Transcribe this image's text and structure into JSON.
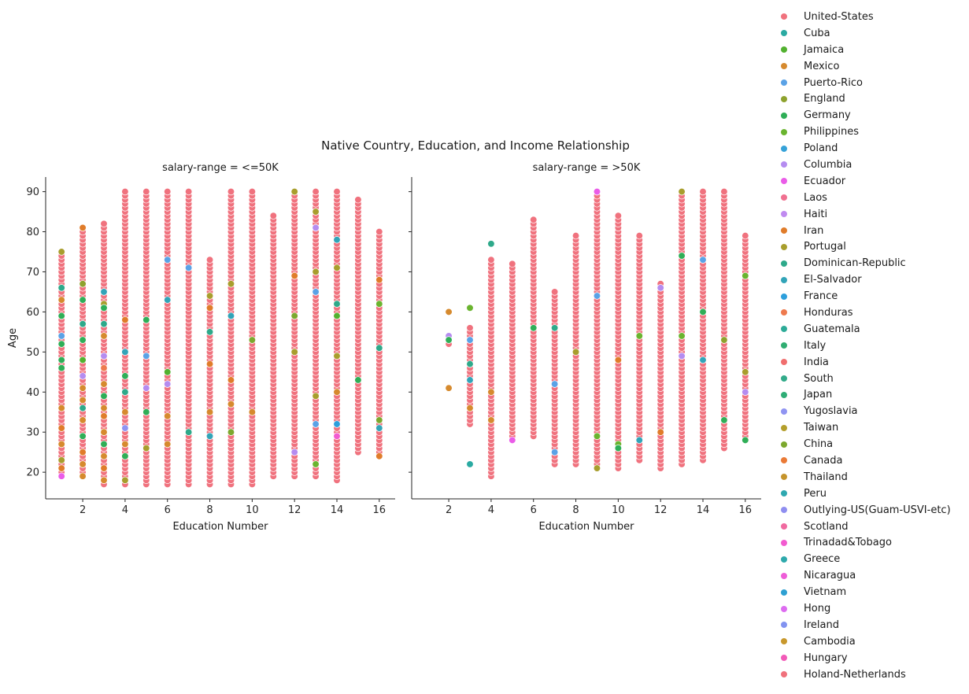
{
  "chart_data": {
    "type": "scatter",
    "title": "Native Country, Education, and Income Relationship",
    "xlabel": "Education Number",
    "ylabel": "Age",
    "xlim": [
      0.25,
      16.75
    ],
    "ylim": [
      13.35,
      93.65
    ],
    "xticks": [
      2,
      4,
      6,
      8,
      10,
      12,
      14,
      16
    ],
    "yticks": [
      20,
      30,
      40,
      50,
      60,
      70,
      80,
      90
    ],
    "grid": false,
    "legend_position": "right",
    "panels": [
      {
        "title": "salary-range = <=50K",
        "columns": [
          {
            "x": 1,
            "ymin": 19,
            "ymax": 75
          },
          {
            "x": 2,
            "ymin": 19,
            "ymax": 81
          },
          {
            "x": 3,
            "ymin": 17,
            "ymax": 82
          },
          {
            "x": 4,
            "ymin": 17,
            "ymax": 90
          },
          {
            "x": 5,
            "ymin": 17,
            "ymax": 90
          },
          {
            "x": 6,
            "ymin": 17,
            "ymax": 90
          },
          {
            "x": 7,
            "ymin": 17,
            "ymax": 90
          },
          {
            "x": 8,
            "ymin": 17,
            "ymax": 73
          },
          {
            "x": 9,
            "ymin": 17,
            "ymax": 90
          },
          {
            "x": 10,
            "ymin": 17,
            "ymax": 90
          },
          {
            "x": 11,
            "ymin": 19,
            "ymax": 84
          },
          {
            "x": 12,
            "ymin": 19,
            "ymax": 90
          },
          {
            "x": 13,
            "ymin": 19,
            "ymax": 90
          },
          {
            "x": 14,
            "ymin": 18,
            "ymax": 90
          },
          {
            "x": 15,
            "ymin": 25,
            "ymax": 88
          },
          {
            "x": 16,
            "ymin": 24,
            "ymax": 80
          }
        ],
        "highlights": [
          {
            "x": 1,
            "y": 66,
            "c": 15
          },
          {
            "x": 1,
            "y": 63,
            "c": 3
          },
          {
            "x": 1,
            "y": 59,
            "c": 6
          },
          {
            "x": 1,
            "y": 54,
            "c": 4
          },
          {
            "x": 1,
            "y": 48,
            "c": 6
          },
          {
            "x": 1,
            "y": 46,
            "c": 6
          },
          {
            "x": 1,
            "y": 36,
            "c": 3
          },
          {
            "x": 1,
            "y": 31,
            "c": 13
          },
          {
            "x": 1,
            "y": 27,
            "c": 3
          },
          {
            "x": 1,
            "y": 23,
            "c": 14
          },
          {
            "x": 1,
            "y": 21,
            "c": 13
          },
          {
            "x": 1,
            "y": 19,
            "c": 10
          },
          {
            "x": 1,
            "y": 75,
            "c": 14
          },
          {
            "x": 1,
            "y": 52,
            "c": 6
          },
          {
            "x": 2,
            "y": 81,
            "c": 13
          },
          {
            "x": 2,
            "y": 67,
            "c": 5
          },
          {
            "x": 2,
            "y": 63,
            "c": 6
          },
          {
            "x": 2,
            "y": 57,
            "c": 15
          },
          {
            "x": 2,
            "y": 53,
            "c": 6
          },
          {
            "x": 2,
            "y": 48,
            "c": 2
          },
          {
            "x": 2,
            "y": 44,
            "c": 9
          },
          {
            "x": 2,
            "y": 41,
            "c": 3
          },
          {
            "x": 2,
            "y": 38,
            "c": 3
          },
          {
            "x": 2,
            "y": 36,
            "c": 15
          },
          {
            "x": 2,
            "y": 33,
            "c": 3
          },
          {
            "x": 2,
            "y": 29,
            "c": 6
          },
          {
            "x": 2,
            "y": 25,
            "c": 13
          },
          {
            "x": 2,
            "y": 22,
            "c": 3
          },
          {
            "x": 2,
            "y": 19,
            "c": 3
          },
          {
            "x": 3,
            "y": 65,
            "c": 16
          },
          {
            "x": 3,
            "y": 62,
            "c": 14
          },
          {
            "x": 3,
            "y": 57,
            "c": 15
          },
          {
            "x": 3,
            "y": 54,
            "c": 3
          },
          {
            "x": 3,
            "y": 49,
            "c": 9
          },
          {
            "x": 3,
            "y": 46,
            "c": 18
          },
          {
            "x": 3,
            "y": 42,
            "c": 3
          },
          {
            "x": 3,
            "y": 39,
            "c": 6
          },
          {
            "x": 3,
            "y": 36,
            "c": 3
          },
          {
            "x": 3,
            "y": 34,
            "c": 13
          },
          {
            "x": 3,
            "y": 30,
            "c": 3
          },
          {
            "x": 3,
            "y": 27,
            "c": 6
          },
          {
            "x": 3,
            "y": 24,
            "c": 3
          },
          {
            "x": 3,
            "y": 21,
            "c": 13
          },
          {
            "x": 3,
            "y": 18,
            "c": 3
          },
          {
            "x": 3,
            "y": 61,
            "c": 6
          },
          {
            "x": 4,
            "y": 58,
            "c": 13
          },
          {
            "x": 4,
            "y": 50,
            "c": 16
          },
          {
            "x": 4,
            "y": 44,
            "c": 6
          },
          {
            "x": 4,
            "y": 40,
            "c": 15
          },
          {
            "x": 4,
            "y": 35,
            "c": 3
          },
          {
            "x": 4,
            "y": 31,
            "c": 24
          },
          {
            "x": 4,
            "y": 27,
            "c": 3
          },
          {
            "x": 4,
            "y": 24,
            "c": 6
          },
          {
            "x": 4,
            "y": 18,
            "c": 14
          },
          {
            "x": 5,
            "y": 58,
            "c": 6
          },
          {
            "x": 5,
            "y": 49,
            "c": 4
          },
          {
            "x": 5,
            "y": 41,
            "c": 9
          },
          {
            "x": 5,
            "y": 35,
            "c": 6
          },
          {
            "x": 5,
            "y": 26,
            "c": 14
          },
          {
            "x": 6,
            "y": 73,
            "c": 4
          },
          {
            "x": 6,
            "y": 63,
            "c": 16
          },
          {
            "x": 6,
            "y": 45,
            "c": 2
          },
          {
            "x": 6,
            "y": 42,
            "c": 9
          },
          {
            "x": 6,
            "y": 34,
            "c": 3
          },
          {
            "x": 6,
            "y": 27,
            "c": 3
          },
          {
            "x": 7,
            "y": 71,
            "c": 4
          },
          {
            "x": 7,
            "y": 30,
            "c": 15
          },
          {
            "x": 8,
            "y": 64,
            "c": 14
          },
          {
            "x": 8,
            "y": 61,
            "c": 13
          },
          {
            "x": 8,
            "y": 55,
            "c": 15
          },
          {
            "x": 8,
            "y": 47,
            "c": 13
          },
          {
            "x": 8,
            "y": 35,
            "c": 3
          },
          {
            "x": 8,
            "y": 29,
            "c": 16
          },
          {
            "x": 9,
            "y": 67,
            "c": 14
          },
          {
            "x": 9,
            "y": 59,
            "c": 16
          },
          {
            "x": 9,
            "y": 43,
            "c": 13
          },
          {
            "x": 9,
            "y": 37,
            "c": 3
          },
          {
            "x": 9,
            "y": 30,
            "c": 26
          },
          {
            "x": 10,
            "y": 35,
            "c": 3
          },
          {
            "x": 10,
            "y": 53,
            "c": 26
          },
          {
            "x": 12,
            "y": 90,
            "c": 14
          },
          {
            "x": 12,
            "y": 69,
            "c": 13
          },
          {
            "x": 12,
            "y": 59,
            "c": 26
          },
          {
            "x": 12,
            "y": 50,
            "c": 14
          },
          {
            "x": 12,
            "y": 25,
            "c": 9
          },
          {
            "x": 13,
            "y": 85,
            "c": 14
          },
          {
            "x": 13,
            "y": 81,
            "c": 9
          },
          {
            "x": 13,
            "y": 70,
            "c": 14
          },
          {
            "x": 13,
            "y": 65,
            "c": 4
          },
          {
            "x": 13,
            "y": 39,
            "c": 14
          },
          {
            "x": 13,
            "y": 32,
            "c": 4
          },
          {
            "x": 13,
            "y": 22,
            "c": 7
          },
          {
            "x": 14,
            "y": 78,
            "c": 16
          },
          {
            "x": 14,
            "y": 71,
            "c": 14
          },
          {
            "x": 14,
            "y": 62,
            "c": 15
          },
          {
            "x": 14,
            "y": 59,
            "c": 2
          },
          {
            "x": 14,
            "y": 49,
            "c": 14
          },
          {
            "x": 14,
            "y": 40,
            "c": 3
          },
          {
            "x": 14,
            "y": 32,
            "c": 17
          },
          {
            "x": 14,
            "y": 29,
            "c": 32
          },
          {
            "x": 15,
            "y": 43,
            "c": 6
          },
          {
            "x": 16,
            "y": 68,
            "c": 13
          },
          {
            "x": 16,
            "y": 62,
            "c": 7
          },
          {
            "x": 16,
            "y": 51,
            "c": 15
          },
          {
            "x": 16,
            "y": 33,
            "c": 26
          },
          {
            "x": 16,
            "y": 31,
            "c": 16
          },
          {
            "x": 16,
            "y": 24,
            "c": 13
          }
        ]
      },
      {
        "title": "salary-range = >50K",
        "columns": [
          {
            "x": 2,
            "ymin": 52,
            "ymax": 53
          },
          {
            "x": 3,
            "ymin": 32,
            "ymax": 56
          },
          {
            "x": 4,
            "ymin": 19,
            "ymax": 73
          },
          {
            "x": 5,
            "ymin": 28,
            "ymax": 72
          },
          {
            "x": 6,
            "ymin": 29,
            "ymax": 83
          },
          {
            "x": 7,
            "ymin": 22,
            "ymax": 65
          },
          {
            "x": 8,
            "ymin": 22,
            "ymax": 79
          },
          {
            "x": 9,
            "ymin": 21,
            "ymax": 90
          },
          {
            "x": 10,
            "ymin": 21,
            "ymax": 84
          },
          {
            "x": 11,
            "ymin": 23,
            "ymax": 79
          },
          {
            "x": 12,
            "ymin": 21,
            "ymax": 67
          },
          {
            "x": 13,
            "ymin": 22,
            "ymax": 90
          },
          {
            "x": 14,
            "ymin": 23,
            "ymax": 90
          },
          {
            "x": 15,
            "ymin": 26,
            "ymax": 90
          },
          {
            "x": 16,
            "ymin": 28,
            "ymax": 79
          }
        ],
        "highlights": [
          {
            "x": 2,
            "y": 60,
            "c": 3
          },
          {
            "x": 2,
            "y": 54,
            "c": 9
          },
          {
            "x": 2,
            "y": 53,
            "c": 6
          },
          {
            "x": 2,
            "y": 41,
            "c": 3
          },
          {
            "x": 3,
            "y": 61,
            "c": 7
          },
          {
            "x": 3,
            "y": 53,
            "c": 4
          },
          {
            "x": 3,
            "y": 47,
            "c": 15
          },
          {
            "x": 3,
            "y": 43,
            "c": 16
          },
          {
            "x": 3,
            "y": 36,
            "c": 3
          },
          {
            "x": 3,
            "y": 22,
            "c": 1
          },
          {
            "x": 4,
            "y": 77,
            "c": 15
          },
          {
            "x": 4,
            "y": 40,
            "c": 3
          },
          {
            "x": 4,
            "y": 33,
            "c": 3
          },
          {
            "x": 5,
            "y": 28,
            "c": 10
          },
          {
            "x": 6,
            "y": 56,
            "c": 6
          },
          {
            "x": 7,
            "y": 56,
            "c": 15
          },
          {
            "x": 7,
            "y": 42,
            "c": 4
          },
          {
            "x": 7,
            "y": 25,
            "c": 4
          },
          {
            "x": 8,
            "y": 50,
            "c": 14
          },
          {
            "x": 9,
            "y": 90,
            "c": 10
          },
          {
            "x": 9,
            "y": 64,
            "c": 4
          },
          {
            "x": 9,
            "y": 29,
            "c": 7
          },
          {
            "x": 9,
            "y": 21,
            "c": 14
          },
          {
            "x": 10,
            "y": 48,
            "c": 13
          },
          {
            "x": 10,
            "y": 27,
            "c": 7
          },
          {
            "x": 10,
            "y": 26,
            "c": 6
          },
          {
            "x": 11,
            "y": 54,
            "c": 7
          },
          {
            "x": 11,
            "y": 28,
            "c": 16
          },
          {
            "x": 12,
            "y": 66,
            "c": 9
          },
          {
            "x": 12,
            "y": 30,
            "c": 13
          },
          {
            "x": 13,
            "y": 90,
            "c": 14
          },
          {
            "x": 13,
            "y": 74,
            "c": 6
          },
          {
            "x": 13,
            "y": 54,
            "c": 7
          },
          {
            "x": 13,
            "y": 49,
            "c": 9
          },
          {
            "x": 14,
            "y": 73,
            "c": 4
          },
          {
            "x": 14,
            "y": 60,
            "c": 6
          },
          {
            "x": 14,
            "y": 48,
            "c": 16
          },
          {
            "x": 15,
            "y": 53,
            "c": 5
          },
          {
            "x": 15,
            "y": 33,
            "c": 6
          },
          {
            "x": 16,
            "y": 69,
            "c": 7
          },
          {
            "x": 16,
            "y": 45,
            "c": 14
          },
          {
            "x": 16,
            "y": 40,
            "c": 9
          },
          {
            "x": 16,
            "y": 28,
            "c": 6
          }
        ]
      }
    ],
    "legend": [
      {
        "name": "United-States",
        "color": "#f0727e"
      },
      {
        "name": "Cuba",
        "color": "#2aaaa2"
      },
      {
        "name": "Jamaica",
        "color": "#52b130"
      },
      {
        "name": "Mexico",
        "color": "#d68a2e"
      },
      {
        "name": "Puerto-Rico",
        "color": "#5aa2e6"
      },
      {
        "name": "England",
        "color": "#8ea22e"
      },
      {
        "name": "Germany",
        "color": "#2fae57"
      },
      {
        "name": "Philippines",
        "color": "#6ab42f"
      },
      {
        "name": "Poland",
        "color": "#36a2d8"
      },
      {
        "name": "Columbia",
        "color": "#b58cf0"
      },
      {
        "name": "Ecuador",
        "color": "#ea5ce8"
      },
      {
        "name": "Laos",
        "color": "#f07090"
      },
      {
        "name": "Haiti",
        "color": "#c08af0"
      },
      {
        "name": "Iran",
        "color": "#e07c2a"
      },
      {
        "name": "Portugal",
        "color": "#a89e2d"
      },
      {
        "name": "Dominican-Republic",
        "color": "#2ea98a"
      },
      {
        "name": "El-Salvador",
        "color": "#32a4b8"
      },
      {
        "name": "France",
        "color": "#2d9fdc"
      },
      {
        "name": "Honduras",
        "color": "#ee7a4e"
      },
      {
        "name": "Guatemala",
        "color": "#2dab98"
      },
      {
        "name": "Italy",
        "color": "#30ad72"
      },
      {
        "name": "India",
        "color": "#f06e6e"
      },
      {
        "name": "South",
        "color": "#33ab8a"
      },
      {
        "name": "Japan",
        "color": "#2fad76"
      },
      {
        "name": "Yugoslavia",
        "color": "#9094f2"
      },
      {
        "name": "Taiwan",
        "color": "#b49f2c"
      },
      {
        "name": "China",
        "color": "#7ca82e"
      },
      {
        "name": "Canada",
        "color": "#ea7a36"
      },
      {
        "name": "Thailand",
        "color": "#c5942c"
      },
      {
        "name": "Peru",
        "color": "#2ea8b0"
      },
      {
        "name": "Outlying-US(Guam-USVI-etc)",
        "color": "#8f8ef0"
      },
      {
        "name": "Scotland",
        "color": "#f06aa0"
      },
      {
        "name": "Trinadad&Tobago",
        "color": "#f25bd0"
      },
      {
        "name": "Greece",
        "color": "#2ea9ac"
      },
      {
        "name": "Nicaragua",
        "color": "#ee5dd8"
      },
      {
        "name": "Vietnam",
        "color": "#2ea0d2"
      },
      {
        "name": "Hong",
        "color": "#dd6cf0"
      },
      {
        "name": "Ireland",
        "color": "#8293f0"
      },
      {
        "name": "Cambodia",
        "color": "#c8982c"
      },
      {
        "name": "Hungary",
        "color": "#f25ab8"
      },
      {
        "name": "Holand-Netherlands",
        "color": "#f0717c"
      }
    ]
  }
}
